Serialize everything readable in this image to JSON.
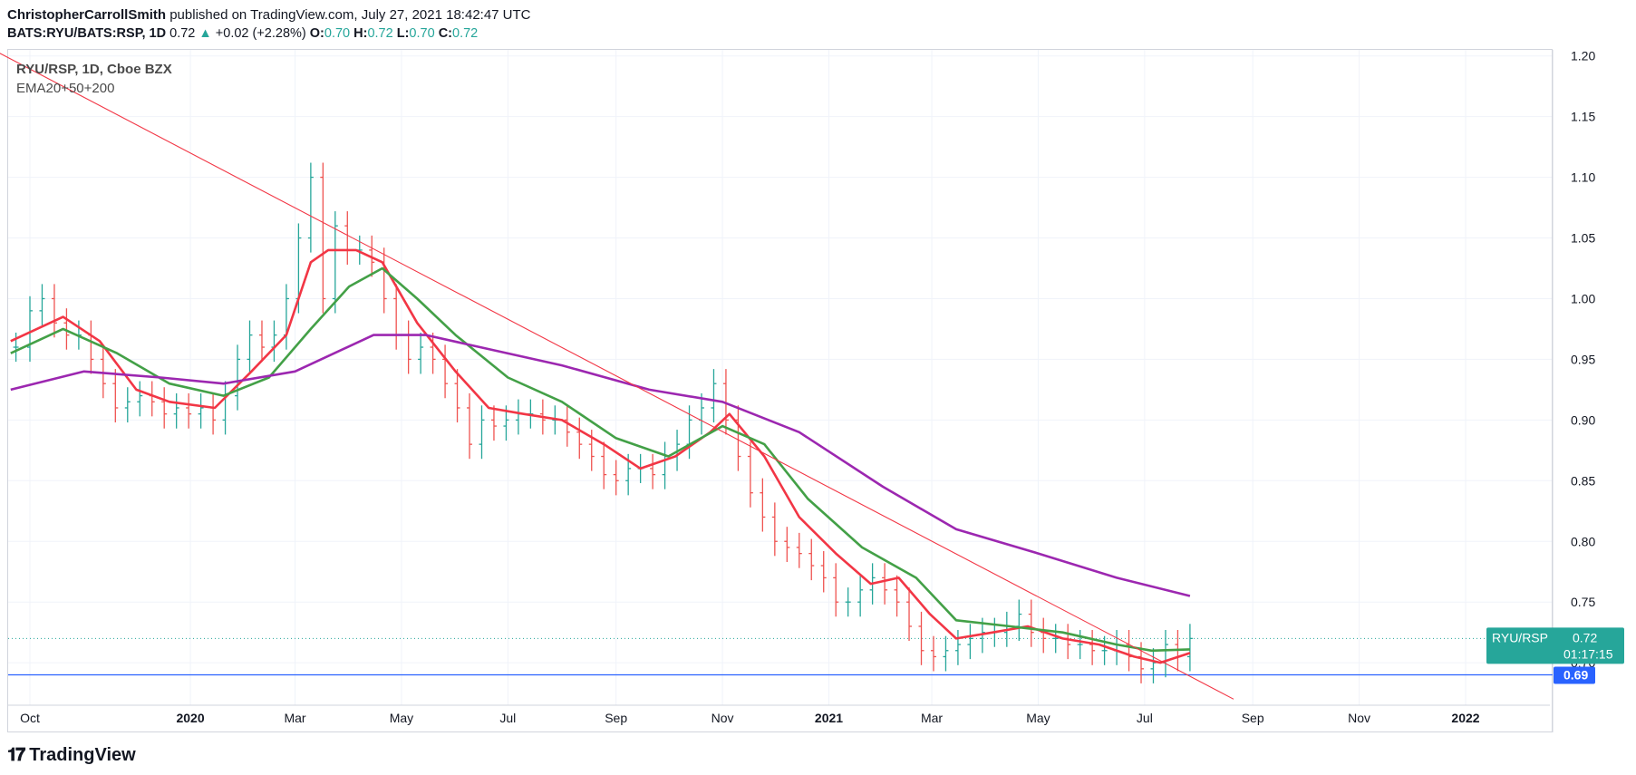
{
  "header": {
    "author": "ChristopherCarrollSmith",
    "published": "published on TradingView.com, July 27, 2021 18:42:47 UTC",
    "symbol_line": "BATS:RYU/BATS:RSP, 1D",
    "last": "0.72",
    "arrow": "▲",
    "change": "+0.02 (+2.28%)",
    "o_label": "O:",
    "o_value": "0.70",
    "h_label": "H:",
    "h_value": "0.72",
    "l_label": "L:",
    "l_value": "0.70",
    "c_label": "C:",
    "c_value": "0.72"
  },
  "legend": {
    "title": "RYU/RSP, 1D, Cboe BZX",
    "indicator": "EMA20+50+200"
  },
  "footer": {
    "brand": "TradingView",
    "mark": "𝟏𝟕"
  },
  "chart_data": {
    "type": "line",
    "x_ticks": [
      "Oct",
      "2020",
      "Mar",
      "May",
      "Jul",
      "Sep",
      "Nov",
      "2021",
      "Mar",
      "May",
      "Jul",
      "Sep",
      "Nov",
      "2022"
    ],
    "y_ticks": [
      "1.20",
      "1.15",
      "1.10",
      "1.05",
      "1.00",
      "0.95",
      "0.90",
      "0.85",
      "0.80",
      "0.75",
      "0.70"
    ],
    "ylim": [
      0.665,
      1.205
    ],
    "price_tag": {
      "name": "RYU/RSP",
      "value": "0.72",
      "countdown": "01:17:15"
    },
    "level_tag": {
      "value": "0.69"
    },
    "horizontal_level": 0.69,
    "last_close": 0.72,
    "trendline": {
      "from": [
        "2019-09-10",
        1.205
      ],
      "to": [
        "2021-08-21",
        0.67
      ]
    },
    "series": [
      {
        "kind": "ohlc",
        "points": [
          [
            "2019-09-23",
            0.96
          ],
          [
            "2019-10-01",
            0.99
          ],
          [
            "2019-10-08",
            1.0
          ],
          [
            "2019-10-15",
            0.98
          ],
          [
            "2019-10-22",
            0.97
          ],
          [
            "2019-10-29",
            0.97
          ],
          [
            "2019-11-05",
            0.95
          ],
          [
            "2019-11-12",
            0.93
          ],
          [
            "2019-11-19",
            0.91
          ],
          [
            "2019-11-26",
            0.915
          ],
          [
            "2019-12-03",
            0.92
          ],
          [
            "2019-12-10",
            0.915
          ],
          [
            "2019-12-17",
            0.905
          ],
          [
            "2019-12-24",
            0.91
          ],
          [
            "2019-12-31",
            0.905
          ],
          [
            "2020-01-07",
            0.91
          ],
          [
            "2020-01-14",
            0.9
          ],
          [
            "2020-01-21",
            0.92
          ],
          [
            "2020-01-28",
            0.95
          ],
          [
            "2020-02-04",
            0.97
          ],
          [
            "2020-02-11",
            0.96
          ],
          [
            "2020-02-18",
            0.97
          ],
          [
            "2020-02-25",
            1.0
          ],
          [
            "2020-03-03",
            1.05
          ],
          [
            "2020-03-10",
            1.1
          ],
          [
            "2020-03-17",
            1.0
          ],
          [
            "2020-03-24",
            1.06
          ],
          [
            "2020-03-31",
            1.04
          ],
          [
            "2020-04-07",
            1.04
          ],
          [
            "2020-04-14",
            1.03
          ],
          [
            "2020-04-21",
            1.0
          ],
          [
            "2020-04-28",
            0.97
          ],
          [
            "2020-05-05",
            0.95
          ],
          [
            "2020-05-12",
            0.96
          ],
          [
            "2020-05-19",
            0.95
          ],
          [
            "2020-05-26",
            0.93
          ],
          [
            "2020-06-02",
            0.91
          ],
          [
            "2020-06-09",
            0.88
          ],
          [
            "2020-06-16",
            0.9
          ],
          [
            "2020-06-23",
            0.895
          ],
          [
            "2020-06-30",
            0.9
          ],
          [
            "2020-07-07",
            0.905
          ],
          [
            "2020-07-14",
            0.905
          ],
          [
            "2020-07-21",
            0.9
          ],
          [
            "2020-07-28",
            0.9
          ],
          [
            "2020-08-04",
            0.89
          ],
          [
            "2020-08-11",
            0.88
          ],
          [
            "2020-08-18",
            0.87
          ],
          [
            "2020-08-25",
            0.855
          ],
          [
            "2020-09-01",
            0.85
          ],
          [
            "2020-09-08",
            0.86
          ],
          [
            "2020-09-15",
            0.86
          ],
          [
            "2020-09-22",
            0.855
          ],
          [
            "2020-09-29",
            0.87
          ],
          [
            "2020-10-06",
            0.88
          ],
          [
            "2020-10-13",
            0.9
          ],
          [
            "2020-10-20",
            0.91
          ],
          [
            "2020-10-27",
            0.93
          ],
          [
            "2020-11-03",
            0.9
          ],
          [
            "2020-11-10",
            0.87
          ],
          [
            "2020-11-17",
            0.84
          ],
          [
            "2020-11-24",
            0.82
          ],
          [
            "2020-12-01",
            0.8
          ],
          [
            "2020-12-08",
            0.795
          ],
          [
            "2020-12-15",
            0.79
          ],
          [
            "2020-12-22",
            0.78
          ],
          [
            "2020-12-29",
            0.77
          ],
          [
            "2021-01-05",
            0.75
          ],
          [
            "2021-01-12",
            0.75
          ],
          [
            "2021-01-19",
            0.76
          ],
          [
            "2021-01-26",
            0.77
          ],
          [
            "2021-02-02",
            0.76
          ],
          [
            "2021-02-09",
            0.75
          ],
          [
            "2021-02-16",
            0.73
          ],
          [
            "2021-02-23",
            0.71
          ],
          [
            "2021-03-02",
            0.705
          ],
          [
            "2021-03-09",
            0.71
          ],
          [
            "2021-03-16",
            0.715
          ],
          [
            "2021-03-23",
            0.72
          ],
          [
            "2021-03-30",
            0.725
          ],
          [
            "2021-04-06",
            0.725
          ],
          [
            "2021-04-13",
            0.73
          ],
          [
            "2021-04-20",
            0.74
          ],
          [
            "2021-04-27",
            0.725
          ],
          [
            "2021-05-04",
            0.72
          ],
          [
            "2021-05-11",
            0.72
          ],
          [
            "2021-05-18",
            0.715
          ],
          [
            "2021-05-25",
            0.715
          ],
          [
            "2021-06-01",
            0.71
          ],
          [
            "2021-06-08",
            0.71
          ],
          [
            "2021-06-15",
            0.715
          ],
          [
            "2021-06-22",
            0.705
          ],
          [
            "2021-06-29",
            0.695
          ],
          [
            "2021-07-06",
            0.7
          ],
          [
            "2021-07-13",
            0.715
          ],
          [
            "2021-07-20",
            0.705
          ],
          [
            "2021-07-27",
            0.72
          ]
        ]
      },
      {
        "name": "EMA20",
        "color": "#f23645",
        "points": [
          [
            "2019-09-20",
            0.965
          ],
          [
            "2019-10-20",
            0.985
          ],
          [
            "2019-11-10",
            0.965
          ],
          [
            "2019-12-01",
            0.925
          ],
          [
            "2019-12-20",
            0.915
          ],
          [
            "2020-01-15",
            0.91
          ],
          [
            "2020-02-05",
            0.94
          ],
          [
            "2020-02-25",
            0.97
          ],
          [
            "2020-03-10",
            1.03
          ],
          [
            "2020-03-20",
            1.04
          ],
          [
            "2020-04-05",
            1.04
          ],
          [
            "2020-04-20",
            1.03
          ],
          [
            "2020-05-10",
            0.98
          ],
          [
            "2020-06-01",
            0.94
          ],
          [
            "2020-06-20",
            0.91
          ],
          [
            "2020-07-10",
            0.905
          ],
          [
            "2020-08-01",
            0.9
          ],
          [
            "2020-08-25",
            0.88
          ],
          [
            "2020-09-15",
            0.86
          ],
          [
            "2020-10-05",
            0.87
          ],
          [
            "2020-10-25",
            0.89
          ],
          [
            "2020-11-05",
            0.905
          ],
          [
            "2020-11-25",
            0.87
          ],
          [
            "2020-12-15",
            0.82
          ],
          [
            "2021-01-05",
            0.79
          ],
          [
            "2021-01-25",
            0.765
          ],
          [
            "2021-02-10",
            0.77
          ],
          [
            "2021-02-28",
            0.74
          ],
          [
            "2021-03-15",
            0.72
          ],
          [
            "2021-04-05",
            0.725
          ],
          [
            "2021-04-25",
            0.73
          ],
          [
            "2021-05-15",
            0.72
          ],
          [
            "2021-06-05",
            0.715
          ],
          [
            "2021-06-25",
            0.705
          ],
          [
            "2021-07-10",
            0.7
          ],
          [
            "2021-07-27",
            0.708
          ]
        ]
      },
      {
        "name": "EMA50",
        "color": "#43a047",
        "points": [
          [
            "2019-09-20",
            0.955
          ],
          [
            "2019-10-20",
            0.975
          ],
          [
            "2019-11-20",
            0.955
          ],
          [
            "2019-12-20",
            0.93
          ],
          [
            "2020-01-20",
            0.92
          ],
          [
            "2020-02-15",
            0.935
          ],
          [
            "2020-03-10",
            0.975
          ],
          [
            "2020-04-01",
            1.01
          ],
          [
            "2020-04-20",
            1.025
          ],
          [
            "2020-05-10",
            1.0
          ],
          [
            "2020-06-01",
            0.97
          ],
          [
            "2020-07-01",
            0.935
          ],
          [
            "2020-08-01",
            0.915
          ],
          [
            "2020-09-01",
            0.885
          ],
          [
            "2020-10-01",
            0.87
          ],
          [
            "2020-11-01",
            0.895
          ],
          [
            "2020-11-25",
            0.88
          ],
          [
            "2020-12-20",
            0.835
          ],
          [
            "2021-01-20",
            0.795
          ],
          [
            "2021-02-20",
            0.77
          ],
          [
            "2021-03-15",
            0.735
          ],
          [
            "2021-04-15",
            0.73
          ],
          [
            "2021-05-15",
            0.725
          ],
          [
            "2021-06-15",
            0.715
          ],
          [
            "2021-07-05",
            0.71
          ],
          [
            "2021-07-27",
            0.711
          ]
        ]
      },
      {
        "name": "EMA200",
        "color": "#9c27b0",
        "points": [
          [
            "2019-09-20",
            0.925
          ],
          [
            "2019-11-01",
            0.94
          ],
          [
            "2019-12-15",
            0.935
          ],
          [
            "2020-01-20",
            0.93
          ],
          [
            "2020-03-01",
            0.94
          ],
          [
            "2020-04-15",
            0.97
          ],
          [
            "2020-05-15",
            0.97
          ],
          [
            "2020-06-15",
            0.96
          ],
          [
            "2020-08-01",
            0.945
          ],
          [
            "2020-09-20",
            0.925
          ],
          [
            "2020-11-01",
            0.915
          ],
          [
            "2020-12-15",
            0.89
          ],
          [
            "2021-02-01",
            0.845
          ],
          [
            "2021-03-15",
            0.81
          ],
          [
            "2021-05-01",
            0.79
          ],
          [
            "2021-06-15",
            0.77
          ],
          [
            "2021-07-27",
            0.755
          ]
        ]
      }
    ]
  }
}
